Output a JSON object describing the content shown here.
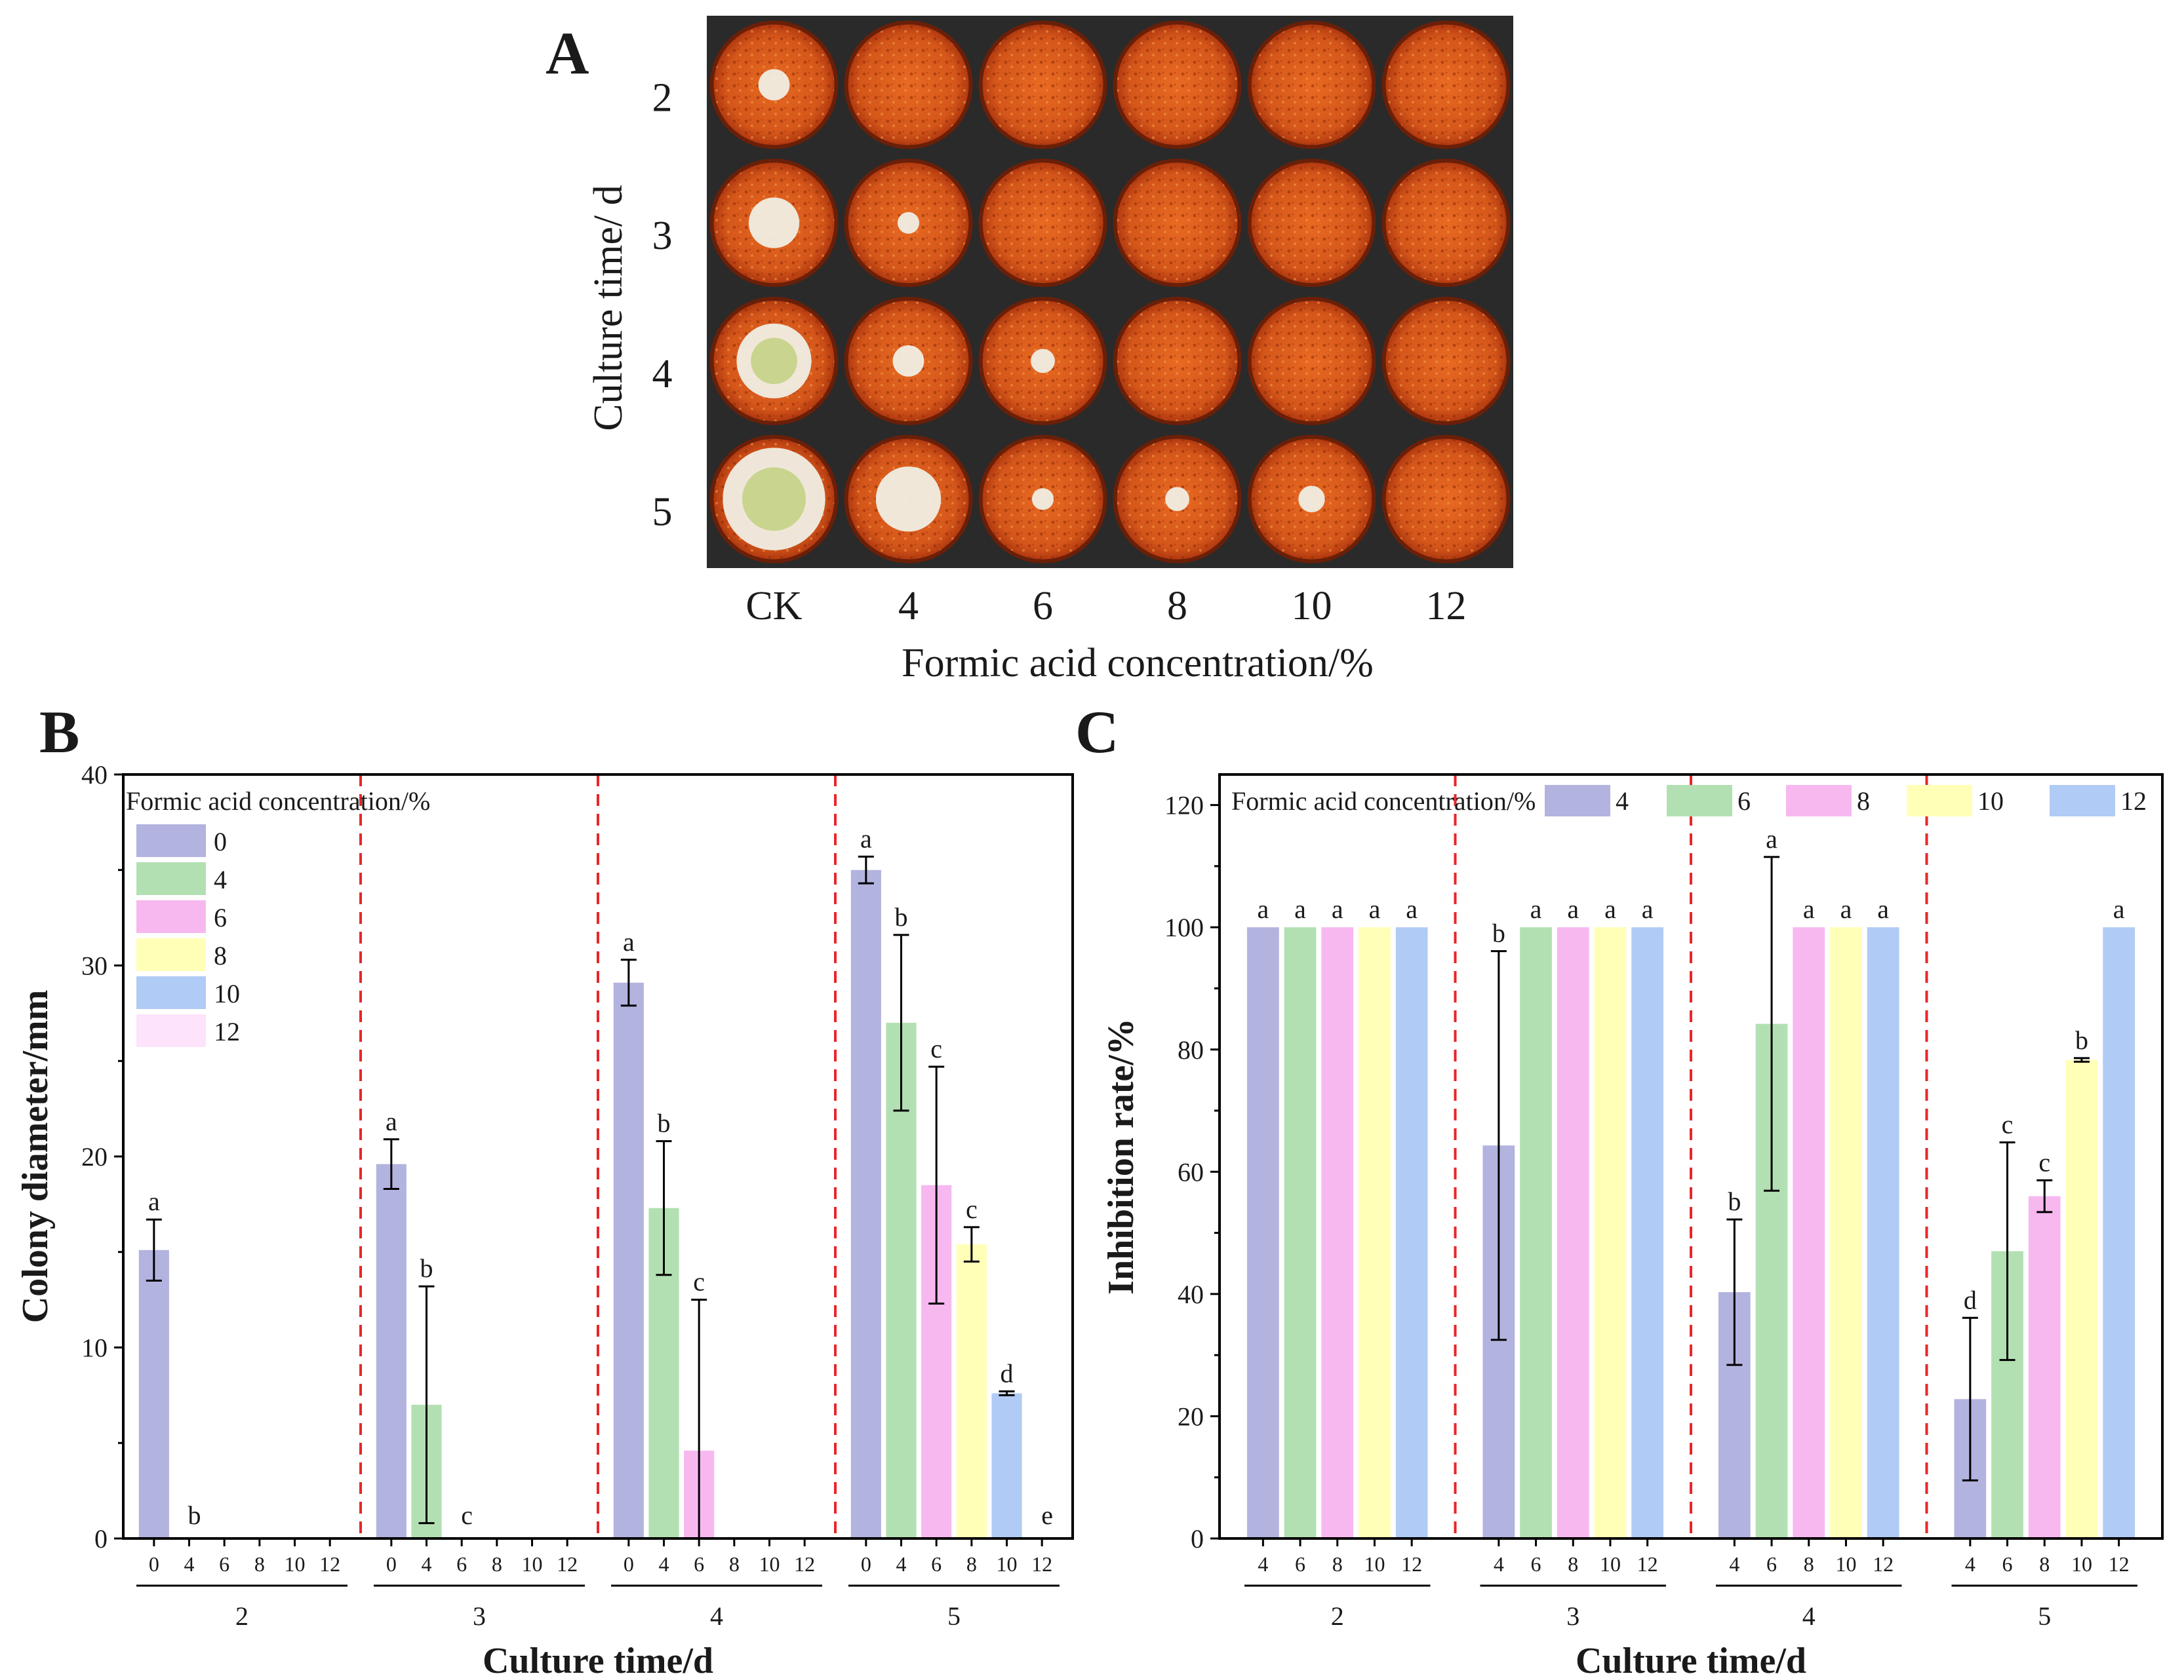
{
  "panels": {
    "a": "A",
    "b": "B",
    "c": "C"
  },
  "panel_a": {
    "y_title": "Culture time/ d",
    "x_title": "Formic acid concentration/%",
    "rows": [
      "2",
      "3",
      "4",
      "5"
    ],
    "cols": [
      "CK",
      "4",
      "6",
      "8",
      "10",
      "12"
    ],
    "colony_shown": [
      [
        1,
        0,
        0,
        0,
        0,
        0
      ],
      [
        1,
        1,
        0,
        0,
        0,
        0
      ],
      [
        1,
        1,
        1,
        0,
        0,
        0
      ],
      [
        1,
        1,
        1,
        1,
        1,
        0
      ]
    ]
  },
  "colors": {
    "c0": "#b3b3e0",
    "c4": "#b2e0b2",
    "c6": "#f7b8f0",
    "c8": "#ffffb8",
    "c10": "#b0cbf5",
    "c12": "#fde3fb",
    "divider": "#e8262a",
    "plate_rim": "#6a1f08",
    "medium_dark": "#b23a10",
    "medium_light": "#e86a22",
    "colony_white": "#f0eee4",
    "colony_green": "#c9d48e"
  },
  "chart_data": [
    {
      "type": "bar",
      "panel": "B",
      "ylabel": "Colony diameter/mm",
      "xlabel": "Culture time/d",
      "ylim": [
        0,
        40
      ],
      "yticks": [
        "0",
        "10",
        "20",
        "30",
        "40"
      ],
      "legend_title": "Formic acid concentration/%",
      "legend_placement": "top-left",
      "groups": [
        "2",
        "3",
        "4",
        "5"
      ],
      "sub_categories": [
        "0",
        "4",
        "6",
        "8",
        "10",
        "12"
      ],
      "series": [
        {
          "name": "0",
          "values": [
            15.1,
            19.6,
            29.1,
            35.0
          ],
          "errors": [
            1.6,
            1.3,
            1.2,
            0.7
          ],
          "letters": [
            "a",
            "a",
            "a",
            "a"
          ]
        },
        {
          "name": "4",
          "values": [
            0,
            7.0,
            17.3,
            27.0
          ],
          "errors": [
            0,
            6.2,
            3.5,
            4.6
          ],
          "letters": [
            "b",
            "b",
            "b",
            "b"
          ]
        },
        {
          "name": "6",
          "values": [
            0,
            0,
            4.6,
            18.5
          ],
          "errors": [
            0,
            0,
            7.9,
            6.2
          ],
          "letters": [
            "",
            "c",
            "c",
            "c"
          ]
        },
        {
          "name": "8",
          "values": [
            0,
            0,
            0,
            15.4
          ],
          "errors": [
            0,
            0,
            0,
            0.9
          ],
          "letters": [
            "",
            "",
            "",
            "c"
          ]
        },
        {
          "name": "10",
          "values": [
            0,
            0,
            0,
            7.6
          ],
          "errors": [
            0,
            0,
            0,
            0.1
          ],
          "letters": [
            "",
            "",
            "",
            "d"
          ]
        },
        {
          "name": "12",
          "values": [
            0,
            0,
            0,
            0
          ],
          "errors": [
            0,
            0,
            0,
            0
          ],
          "letters": [
            "",
            "",
            "",
            "e"
          ]
        }
      ],
      "group_zero_letters": [
        "b",
        "c",
        "c",
        "e"
      ]
    },
    {
      "type": "bar",
      "panel": "C",
      "ylabel": "Inhibition rate/%",
      "xlabel": "Culture time/d",
      "ylim": [
        0,
        125
      ],
      "yticks": [
        "0",
        "20",
        "40",
        "60",
        "80",
        "100",
        "120"
      ],
      "legend_title": "Formic acid concentration/%",
      "legend_placement": "top",
      "groups": [
        "2",
        "3",
        "4",
        "5"
      ],
      "sub_categories": [
        "4",
        "6",
        "8",
        "10",
        "12"
      ],
      "series": [
        {
          "name": "4",
          "values": [
            100,
            64.3,
            40.3,
            22.8
          ],
          "errors": [
            0,
            31.8,
            11.9,
            13.3
          ],
          "letters": [
            "a",
            "b",
            "b",
            "d"
          ]
        },
        {
          "name": "6",
          "values": [
            100,
            100,
            84.2,
            47.0
          ],
          "errors": [
            0,
            0,
            27.3,
            17.8
          ],
          "letters": [
            "a",
            "a",
            "a",
            "c"
          ]
        },
        {
          "name": "8",
          "values": [
            100,
            100,
            100,
            56.0
          ],
          "errors": [
            0,
            0,
            0,
            2.6
          ],
          "letters": [
            "a",
            "a",
            "a",
            "c"
          ]
        },
        {
          "name": "10",
          "values": [
            100,
            100,
            100,
            78.3
          ],
          "errors": [
            0,
            0,
            0,
            0.3
          ],
          "letters": [
            "a",
            "a",
            "a",
            "b"
          ]
        },
        {
          "name": "12",
          "values": [
            100,
            100,
            100,
            100
          ],
          "errors": [
            0,
            0,
            0,
            0
          ],
          "letters": [
            "a",
            "a",
            "a",
            "a"
          ]
        }
      ]
    }
  ]
}
